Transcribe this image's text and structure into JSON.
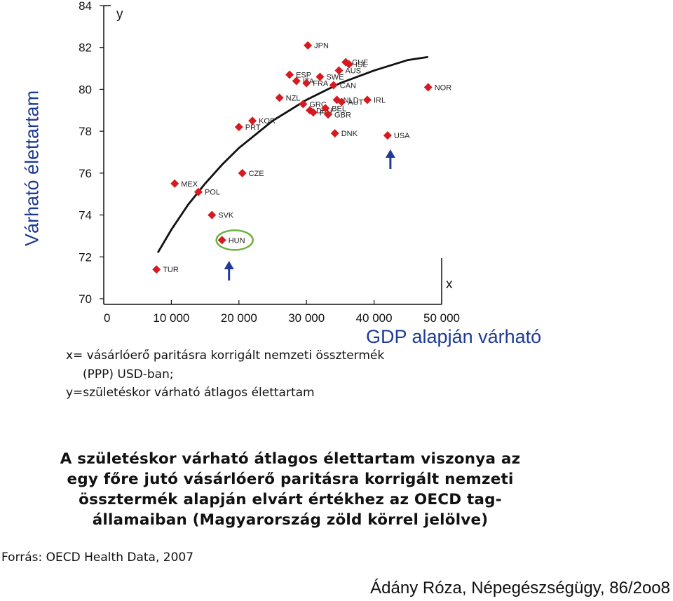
{
  "chart_data": {
    "type": "scatter",
    "xlabel": "x",
    "ylabel": "y",
    "xlim": [
      0,
      50000
    ],
    "ylim": [
      70,
      84
    ],
    "x_ticks": [
      0,
      10000,
      20000,
      30000,
      40000,
      50000
    ],
    "x_tick_labels": [
      "0",
      "10 000",
      "20 000",
      "30 000",
      "40 000",
      "50 000"
    ],
    "y_ticks": [
      70,
      72,
      74,
      76,
      78,
      80,
      82,
      84
    ],
    "point_color": "#d71920",
    "curve_color": "#111111",
    "highlight_color": "#6cb33f",
    "arrow_color": "#1f3b95",
    "points": [
      {
        "label": "TUR",
        "x": 7800,
        "y": 71.4
      },
      {
        "label": "MEX",
        "x": 10500,
        "y": 75.5
      },
      {
        "label": "POL",
        "x": 14000,
        "y": 75.1
      },
      {
        "label": "SVK",
        "x": 16000,
        "y": 74.0
      },
      {
        "label": "HUN",
        "x": 17500,
        "y": 72.8
      },
      {
        "label": "PRT",
        "x": 20000,
        "y": 78.2
      },
      {
        "label": "CZE",
        "x": 20500,
        "y": 76.0
      },
      {
        "label": "KOR",
        "x": 22000,
        "y": 78.5
      },
      {
        "label": "NZL",
        "x": 26000,
        "y": 79.6
      },
      {
        "label": "GRC",
        "x": 29500,
        "y": 79.3
      },
      {
        "label": "ESP",
        "x": 27500,
        "y": 80.7
      },
      {
        "label": "ITA",
        "x": 28500,
        "y": 80.4
      },
      {
        "label": "FRA",
        "x": 30000,
        "y": 80.3
      },
      {
        "label": "DEU",
        "x": 30500,
        "y": 79.0
      },
      {
        "label": "FIN",
        "x": 31000,
        "y": 78.9
      },
      {
        "label": "JPN",
        "x": 30200,
        "y": 82.1
      },
      {
        "label": "SWE",
        "x": 32000,
        "y": 80.6
      },
      {
        "label": "BEL",
        "x": 32800,
        "y": 79.1
      },
      {
        "label": "GBR",
        "x": 33200,
        "y": 78.8
      },
      {
        "label": "NLD",
        "x": 34500,
        "y": 79.5
      },
      {
        "label": "DNK",
        "x": 34200,
        "y": 77.9
      },
      {
        "label": "CAN",
        "x": 34000,
        "y": 80.2
      },
      {
        "label": "AUS",
        "x": 34800,
        "y": 80.9
      },
      {
        "label": "AUT",
        "x": 35200,
        "y": 79.4
      },
      {
        "label": "CHE",
        "x": 35800,
        "y": 81.3
      },
      {
        "label": "ISL",
        "x": 36300,
        "y": 81.2
      },
      {
        "label": "IRL",
        "x": 39000,
        "y": 79.5
      },
      {
        "label": "USA",
        "x": 42000,
        "y": 77.8
      },
      {
        "label": "NOR",
        "x": 48000,
        "y": 80.1
      }
    ],
    "curve": [
      {
        "x": 8000,
        "y": 72.2
      },
      {
        "x": 10000,
        "y": 73.3
      },
      {
        "x": 12500,
        "y": 74.5
      },
      {
        "x": 15000,
        "y": 75.5
      },
      {
        "x": 17500,
        "y": 76.4
      },
      {
        "x": 20000,
        "y": 77.2
      },
      {
        "x": 25000,
        "y": 78.5
      },
      {
        "x": 30000,
        "y": 79.5
      },
      {
        "x": 35000,
        "y": 80.3
      },
      {
        "x": 40000,
        "y": 80.9
      },
      {
        "x": 45000,
        "y": 81.4
      },
      {
        "x": 48000,
        "y": 81.55
      }
    ],
    "highlighted": "HUN"
  },
  "texts": {
    "y_axis_title": "Várható élettartam",
    "gdp_label": "GDP alapján várható",
    "def_line1": "x= vásárlóerő paritásra korrigált nemzeti össztermék",
    "def_line2": "(PPP) USD-ban;",
    "def_line3": "y=születéskor várható átlagos élettartam",
    "caption_line1": "A születéskor várható átlagos élettartam viszonya az",
    "caption_line2": "egy főre jutó vásárlóerő paritásra korrigált nemzeti",
    "caption_line3": "össztermék alapján elvárt értékhez az OECD tag-",
    "caption_line4": "államaiban (Magyarország zöld körrel jelölve)",
    "source": "Forrás: OECD Health Data, 2007",
    "author": "Ádány Róza, Népegészségügy, 86/2oo8"
  }
}
